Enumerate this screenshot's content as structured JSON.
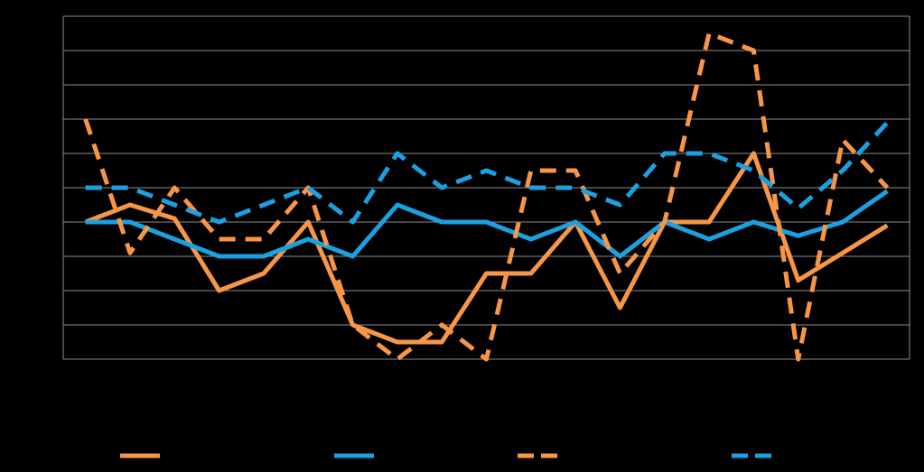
{
  "chart_data": {
    "type": "line",
    "categories": [
      null,
      null,
      null,
      null,
      null,
      null,
      null,
      null,
      null,
      null,
      null,
      null,
      null,
      null,
      null,
      null,
      null,
      null,
      null
    ],
    "series": [
      {
        "color": "#f79646",
        "dashed": false,
        "values": [
          4,
          4.5,
          4.1,
          2,
          2.5,
          4,
          1,
          0.5,
          0.5,
          2.5,
          2.5,
          4,
          1.5,
          4,
          4,
          6,
          2.3,
          3.1,
          3.9
        ]
      },
      {
        "color": "#1ba1e2",
        "dashed": false,
        "values": [
          4,
          4,
          3.5,
          3,
          3,
          3.5,
          3,
          4.5,
          4,
          4,
          3.5,
          4,
          3,
          4,
          3.5,
          4,
          3.6,
          4,
          4.9
        ]
      },
      {
        "color": "#f79646",
        "dashed": true,
        "values": [
          7,
          3.1,
          5,
          3.5,
          3.5,
          5,
          1,
          0,
          1,
          0,
          5.5,
          5.5,
          2.5,
          4,
          9.5,
          9,
          0,
          6.4,
          5
        ]
      },
      {
        "color": "#1ba1e2",
        "dashed": true,
        "values": [
          5,
          5,
          4.5,
          4,
          4.5,
          5,
          4,
          6,
          5,
          5.5,
          5,
          5,
          4.5,
          6,
          6,
          5.5,
          4.4,
          5.5,
          6.9
        ]
      }
    ],
    "ylim": [
      0,
      10
    ],
    "yticks": [
      0,
      1,
      2,
      3,
      4,
      5,
      6,
      7,
      8,
      9,
      10
    ],
    "grid": true,
    "legend": "bottom"
  }
}
